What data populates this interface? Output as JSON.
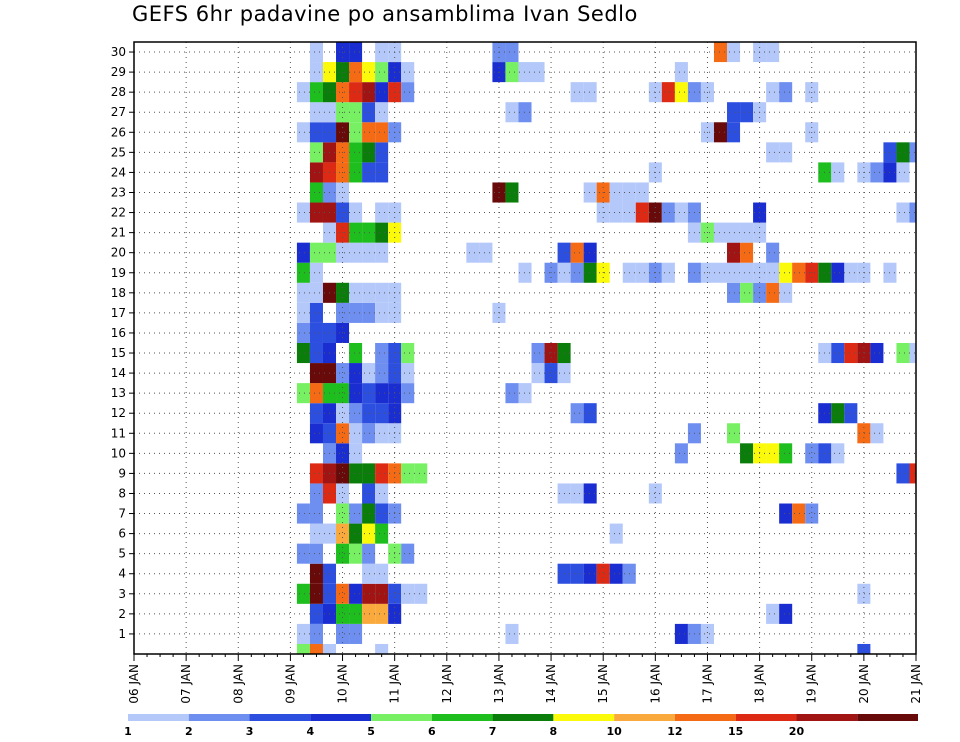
{
  "title": "GEFS 6hr padavine po ansamblima Ivan Sedlo",
  "chart_data": {
    "type": "heatmap",
    "title": "GEFS 6hr padavine po ansamblima Ivan Sedlo",
    "x_labels": [
      "06 JAN",
      "07 JAN",
      "08 JAN",
      "09 JAN",
      "10 JAN",
      "11 JAN",
      "12 JAN",
      "13 JAN",
      "14 JAN",
      "15 JAN",
      "16 JAN",
      "17 JAN",
      "18 JAN",
      "19 JAN",
      "20 JAN",
      "21 JAN"
    ],
    "y_labels": [
      "1",
      "2",
      "3",
      "4",
      "5",
      "6",
      "7",
      "8",
      "9",
      "10",
      "11",
      "12",
      "13",
      "14",
      "15",
      "16",
      "17",
      "18",
      "19",
      "20",
      "21",
      "22",
      "23",
      "24",
      "25",
      "26",
      "27",
      "28",
      "29",
      "30"
    ],
    "x_unit": "6h steps after 06 JAN 00Z",
    "xlim": [
      0,
      60
    ],
    "ylim": [
      0,
      30
    ],
    "grid": true,
    "colorbar": {
      "labels": [
        "1",
        "2",
        "3",
        "4",
        "5",
        "6",
        "7",
        "8",
        "10",
        "12",
        "15",
        "20"
      ],
      "colors": [
        "#b4c8fa",
        "#6e8ff0",
        "#2d4fe0",
        "#1a2dd1",
        "#78f064",
        "#1ebe1e",
        "#0a7d0a",
        "#fafa0a",
        "#faaa3c",
        "#f56a14",
        "#dc2a14",
        "#a01414",
        "#690a0a"
      ]
    },
    "cells": [
      [
        13,
        1,
        0
      ],
      [
        14,
        1,
        1
      ],
      [
        16,
        1,
        1
      ],
      [
        17,
        1,
        1
      ],
      [
        29,
        1,
        0
      ],
      [
        42,
        1,
        3
      ],
      [
        43,
        1,
        1
      ],
      [
        44,
        1,
        0
      ],
      [
        14,
        2,
        2
      ],
      [
        15,
        2,
        3
      ],
      [
        16,
        2,
        5
      ],
      [
        17,
        2,
        5
      ],
      [
        18,
        2,
        8
      ],
      [
        19,
        2,
        8
      ],
      [
        20,
        2,
        3
      ],
      [
        49,
        2,
        0
      ],
      [
        50,
        2,
        3
      ],
      [
        13,
        3,
        5
      ],
      [
        14,
        3,
        12
      ],
      [
        15,
        3,
        2
      ],
      [
        16,
        3,
        9
      ],
      [
        17,
        3,
        3
      ],
      [
        18,
        3,
        11
      ],
      [
        19,
        3,
        11
      ],
      [
        20,
        3,
        2
      ],
      [
        21,
        3,
        0
      ],
      [
        22,
        3,
        0
      ],
      [
        56,
        3,
        0
      ],
      [
        14,
        4,
        12
      ],
      [
        15,
        4,
        2
      ],
      [
        18,
        4,
        0
      ],
      [
        19,
        4,
        0
      ],
      [
        33,
        4,
        2
      ],
      [
        34,
        4,
        2
      ],
      [
        35,
        4,
        3
      ],
      [
        36,
        4,
        10
      ],
      [
        37,
        4,
        3
      ],
      [
        38,
        4,
        1
      ],
      [
        13,
        5,
        1
      ],
      [
        14,
        5,
        1
      ],
      [
        16,
        5,
        5
      ],
      [
        17,
        5,
        4
      ],
      [
        18,
        5,
        1
      ],
      [
        20,
        5,
        4
      ],
      [
        21,
        5,
        1
      ],
      [
        14,
        6,
        0
      ],
      [
        15,
        6,
        0
      ],
      [
        16,
        6,
        8
      ],
      [
        17,
        6,
        6
      ],
      [
        18,
        6,
        7
      ],
      [
        19,
        6,
        5
      ],
      [
        37,
        6,
        0
      ],
      [
        13,
        7,
        1
      ],
      [
        14,
        7,
        1
      ],
      [
        16,
        7,
        4
      ],
      [
        17,
        7,
        1
      ],
      [
        18,
        7,
        6
      ],
      [
        19,
        7,
        2
      ],
      [
        20,
        7,
        1
      ],
      [
        50,
        7,
        3
      ],
      [
        51,
        7,
        9
      ],
      [
        52,
        7,
        1
      ],
      [
        14,
        8,
        1
      ],
      [
        15,
        8,
        10
      ],
      [
        16,
        8,
        0
      ],
      [
        18,
        8,
        2
      ],
      [
        19,
        8,
        0
      ],
      [
        33,
        8,
        0
      ],
      [
        34,
        8,
        0
      ],
      [
        35,
        8,
        3
      ],
      [
        40,
        8,
        0
      ],
      [
        14,
        9,
        10
      ],
      [
        15,
        9,
        11
      ],
      [
        16,
        9,
        12
      ],
      [
        17,
        9,
        6
      ],
      [
        18,
        9,
        6
      ],
      [
        19,
        9,
        10
      ],
      [
        20,
        9,
        9
      ],
      [
        21,
        9,
        4
      ],
      [
        22,
        9,
        4
      ],
      [
        59,
        9,
        2
      ],
      [
        60,
        9,
        10
      ],
      [
        15,
        10,
        1
      ],
      [
        16,
        10,
        3
      ],
      [
        17,
        10,
        0
      ],
      [
        42,
        10,
        1
      ],
      [
        47,
        10,
        6
      ],
      [
        48,
        10,
        7
      ],
      [
        49,
        10,
        7
      ],
      [
        50,
        10,
        5
      ],
      [
        52,
        10,
        1
      ],
      [
        53,
        10,
        2
      ],
      [
        54,
        10,
        0
      ],
      [
        14,
        11,
        3
      ],
      [
        15,
        11,
        2
      ],
      [
        16,
        11,
        9
      ],
      [
        17,
        11,
        0
      ],
      [
        18,
        11,
        1
      ],
      [
        19,
        11,
        0
      ],
      [
        20,
        11,
        0
      ],
      [
        43,
        11,
        1
      ],
      [
        46,
        11,
        4
      ],
      [
        56,
        11,
        9
      ],
      [
        57,
        11,
        0
      ],
      [
        14,
        12,
        2
      ],
      [
        15,
        12,
        3
      ],
      [
        16,
        12,
        0
      ],
      [
        17,
        12,
        1
      ],
      [
        18,
        12,
        2
      ],
      [
        19,
        12,
        2
      ],
      [
        20,
        12,
        3
      ],
      [
        34,
        12,
        1
      ],
      [
        35,
        12,
        2
      ],
      [
        53,
        12,
        3
      ],
      [
        54,
        12,
        6
      ],
      [
        55,
        12,
        2
      ],
      [
        13,
        13,
        4
      ],
      [
        14,
        13,
        9
      ],
      [
        15,
        13,
        5
      ],
      [
        16,
        13,
        5
      ],
      [
        17,
        13,
        3
      ],
      [
        18,
        13,
        2
      ],
      [
        19,
        13,
        3
      ],
      [
        20,
        13,
        3
      ],
      [
        21,
        13,
        1
      ],
      [
        29,
        13,
        1
      ],
      [
        30,
        13,
        0
      ],
      [
        14,
        14,
        12
      ],
      [
        15,
        14,
        12
      ],
      [
        16,
        14,
        1
      ],
      [
        17,
        14,
        3
      ],
      [
        18,
        14,
        0
      ],
      [
        19,
        14,
        1
      ],
      [
        20,
        14,
        2
      ],
      [
        21,
        14,
        0
      ],
      [
        31,
        14,
        0
      ],
      [
        32,
        14,
        2
      ],
      [
        33,
        14,
        0
      ],
      [
        13,
        15,
        6
      ],
      [
        14,
        15,
        2
      ],
      [
        15,
        15,
        3
      ],
      [
        17,
        15,
        5
      ],
      [
        19,
        15,
        1
      ],
      [
        20,
        15,
        2
      ],
      [
        21,
        15,
        4
      ],
      [
        31,
        15,
        1
      ],
      [
        32,
        15,
        11
      ],
      [
        33,
        15,
        6
      ],
      [
        53,
        15,
        0
      ],
      [
        54,
        15,
        2
      ],
      [
        55,
        15,
        10
      ],
      [
        56,
        15,
        11
      ],
      [
        57,
        15,
        3
      ],
      [
        59,
        15,
        4
      ],
      [
        60,
        15,
        0
      ],
      [
        13,
        16,
        1
      ],
      [
        14,
        16,
        2
      ],
      [
        15,
        16,
        2
      ],
      [
        16,
        16,
        3
      ],
      [
        13,
        17,
        0
      ],
      [
        14,
        17,
        2
      ],
      [
        16,
        17,
        1
      ],
      [
        17,
        17,
        1
      ],
      [
        18,
        17,
        1
      ],
      [
        19,
        17,
        0
      ],
      [
        20,
        17,
        0
      ],
      [
        28,
        17,
        0
      ],
      [
        13,
        18,
        0
      ],
      [
        14,
        18,
        0
      ],
      [
        15,
        18,
        12
      ],
      [
        16,
        18,
        6
      ],
      [
        17,
        18,
        0
      ],
      [
        18,
        18,
        0
      ],
      [
        19,
        18,
        0
      ],
      [
        20,
        18,
        0
      ],
      [
        46,
        18,
        1
      ],
      [
        47,
        18,
        4
      ],
      [
        48,
        18,
        1
      ],
      [
        49,
        18,
        9
      ],
      [
        50,
        18,
        0
      ],
      [
        13,
        19,
        5
      ],
      [
        14,
        19,
        0
      ],
      [
        30,
        19,
        0
      ],
      [
        32,
        19,
        1
      ],
      [
        33,
        19,
        0
      ],
      [
        34,
        19,
        1
      ],
      [
        35,
        19,
        6
      ],
      [
        36,
        19,
        7
      ],
      [
        38,
        19,
        0
      ],
      [
        39,
        19,
        0
      ],
      [
        40,
        19,
        1
      ],
      [
        41,
        19,
        0
      ],
      [
        43,
        19,
        1
      ],
      [
        44,
        19,
        0
      ],
      [
        45,
        19,
        0
      ],
      [
        46,
        19,
        0
      ],
      [
        47,
        19,
        0
      ],
      [
        48,
        19,
        0
      ],
      [
        49,
        19,
        0
      ],
      [
        50,
        19,
        7
      ],
      [
        51,
        19,
        9
      ],
      [
        52,
        19,
        10
      ],
      [
        53,
        19,
        6
      ],
      [
        54,
        19,
        3
      ],
      [
        55,
        19,
        0
      ],
      [
        56,
        19,
        0
      ],
      [
        58,
        19,
        0
      ],
      [
        13,
        20,
        3
      ],
      [
        14,
        20,
        4
      ],
      [
        15,
        20,
        4
      ],
      [
        16,
        20,
        0
      ],
      [
        17,
        20,
        0
      ],
      [
        18,
        20,
        0
      ],
      [
        19,
        20,
        0
      ],
      [
        26,
        20,
        0
      ],
      [
        27,
        20,
        0
      ],
      [
        33,
        20,
        2
      ],
      [
        34,
        20,
        9
      ],
      [
        35,
        20,
        3
      ],
      [
        46,
        20,
        11
      ],
      [
        47,
        20,
        9
      ],
      [
        49,
        20,
        1
      ],
      [
        15,
        21,
        0
      ],
      [
        16,
        21,
        10
      ],
      [
        17,
        21,
        5
      ],
      [
        18,
        21,
        5
      ],
      [
        19,
        21,
        6
      ],
      [
        20,
        21,
        7
      ],
      [
        43,
        21,
        0
      ],
      [
        44,
        21,
        4
      ],
      [
        45,
        21,
        0
      ],
      [
        46,
        21,
        0
      ],
      [
        47,
        21,
        0
      ],
      [
        48,
        21,
        0
      ],
      [
        13,
        22,
        0
      ],
      [
        14,
        22,
        11
      ],
      [
        15,
        22,
        11
      ],
      [
        16,
        22,
        2
      ],
      [
        17,
        22,
        0
      ],
      [
        19,
        22,
        0
      ],
      [
        20,
        22,
        0
      ],
      [
        36,
        22,
        0
      ],
      [
        37,
        22,
        0
      ],
      [
        38,
        22,
        0
      ],
      [
        39,
        22,
        10
      ],
      [
        40,
        22,
        12
      ],
      [
        41,
        22,
        1
      ],
      [
        42,
        22,
        0
      ],
      [
        43,
        22,
        1
      ],
      [
        48,
        22,
        3
      ],
      [
        59,
        22,
        0
      ],
      [
        60,
        22,
        1
      ],
      [
        14,
        23,
        5
      ],
      [
        15,
        23,
        1
      ],
      [
        16,
        23,
        0
      ],
      [
        28,
        23,
        12
      ],
      [
        29,
        23,
        6
      ],
      [
        35,
        23,
        0
      ],
      [
        36,
        23,
        9
      ],
      [
        37,
        23,
        0
      ],
      [
        38,
        23,
        0
      ],
      [
        39,
        23,
        0
      ],
      [
        14,
        24,
        11
      ],
      [
        15,
        24,
        10
      ],
      [
        16,
        24,
        9
      ],
      [
        17,
        24,
        5
      ],
      [
        18,
        24,
        2
      ],
      [
        19,
        24,
        2
      ],
      [
        40,
        24,
        0
      ],
      [
        53,
        24,
        5
      ],
      [
        54,
        24,
        0
      ],
      [
        56,
        24,
        0
      ],
      [
        57,
        24,
        1
      ],
      [
        58,
        24,
        3
      ],
      [
        59,
        24,
        0
      ],
      [
        14,
        25,
        4
      ],
      [
        15,
        25,
        11
      ],
      [
        16,
        25,
        9
      ],
      [
        17,
        25,
        5
      ],
      [
        18,
        25,
        6
      ],
      [
        19,
        25,
        2
      ],
      [
        49,
        25,
        0
      ],
      [
        50,
        25,
        0
      ],
      [
        58,
        25,
        2
      ],
      [
        59,
        25,
        6
      ],
      [
        60,
        25,
        1
      ],
      [
        13,
        26,
        0
      ],
      [
        14,
        26,
        2
      ],
      [
        15,
        26,
        2
      ],
      [
        16,
        26,
        12
      ],
      [
        17,
        26,
        4
      ],
      [
        18,
        26,
        9
      ],
      [
        19,
        26,
        9
      ],
      [
        20,
        26,
        1
      ],
      [
        44,
        26,
        0
      ],
      [
        45,
        26,
        12
      ],
      [
        46,
        26,
        2
      ],
      [
        52,
        26,
        0
      ],
      [
        14,
        27,
        0
      ],
      [
        15,
        27,
        0
      ],
      [
        16,
        27,
        4
      ],
      [
        17,
        27,
        4
      ],
      [
        18,
        27,
        2
      ],
      [
        19,
        27,
        0
      ],
      [
        29,
        27,
        0
      ],
      [
        30,
        27,
        1
      ],
      [
        46,
        27,
        2
      ],
      [
        47,
        27,
        2
      ],
      [
        48,
        27,
        0
      ],
      [
        13,
        28,
        0
      ],
      [
        14,
        28,
        5
      ],
      [
        15,
        28,
        6
      ],
      [
        16,
        28,
        9
      ],
      [
        17,
        28,
        10
      ],
      [
        18,
        28,
        11
      ],
      [
        19,
        28,
        3
      ],
      [
        20,
        28,
        10
      ],
      [
        21,
        28,
        1
      ],
      [
        34,
        28,
        0
      ],
      [
        35,
        28,
        0
      ],
      [
        40,
        28,
        0
      ],
      [
        41,
        28,
        10
      ],
      [
        42,
        28,
        7
      ],
      [
        43,
        28,
        1
      ],
      [
        44,
        28,
        0
      ],
      [
        49,
        28,
        0
      ],
      [
        50,
        28,
        1
      ],
      [
        52,
        28,
        0
      ],
      [
        14,
        29,
        0
      ],
      [
        15,
        29,
        7
      ],
      [
        16,
        29,
        6
      ],
      [
        17,
        29,
        9
      ],
      [
        18,
        29,
        7
      ],
      [
        19,
        29,
        4
      ],
      [
        20,
        29,
        3
      ],
      [
        21,
        29,
        0
      ],
      [
        28,
        29,
        3
      ],
      [
        29,
        29,
        4
      ],
      [
        30,
        29,
        0
      ],
      [
        31,
        29,
        0
      ],
      [
        42,
        29,
        0
      ],
      [
        14,
        30,
        0
      ],
      [
        16,
        30,
        3
      ],
      [
        17,
        30,
        3
      ],
      [
        19,
        30,
        0
      ],
      [
        20,
        30,
        0
      ],
      [
        28,
        30,
        1
      ],
      [
        29,
        30,
        1
      ],
      [
        45,
        30,
        9
      ],
      [
        46,
        30,
        0
      ],
      [
        48,
        30,
        0
      ],
      [
        49,
        30,
        0
      ],
      [
        13,
        0,
        4
      ],
      [
        14,
        0,
        9
      ],
      [
        15,
        0,
        0
      ],
      [
        19,
        0,
        0
      ],
      [
        56,
        0,
        2
      ]
    ]
  }
}
